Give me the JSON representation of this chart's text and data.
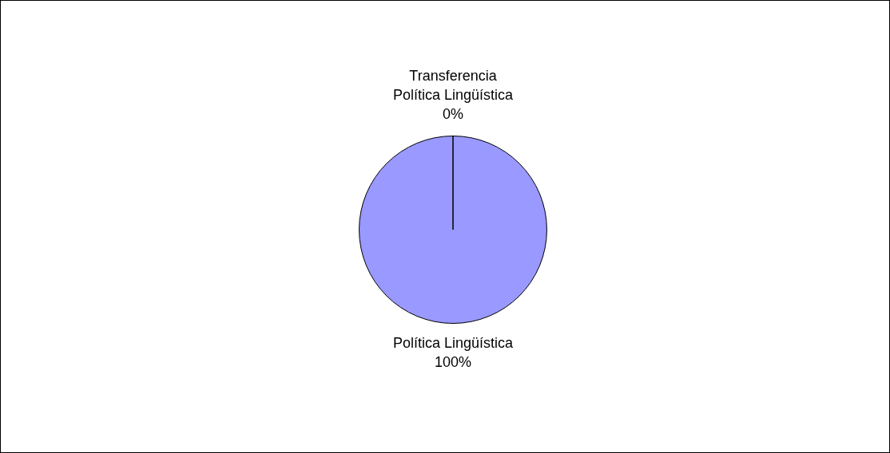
{
  "chart_data": {
    "type": "pie",
    "categories": [
      "Transferencia Política Lingüística",
      "Política Lingüística"
    ],
    "values": [
      0,
      100
    ],
    "colors": [
      "#993366",
      "#9999ff"
    ],
    "value_labels": [
      "0%",
      "100%"
    ],
    "legend": false
  }
}
